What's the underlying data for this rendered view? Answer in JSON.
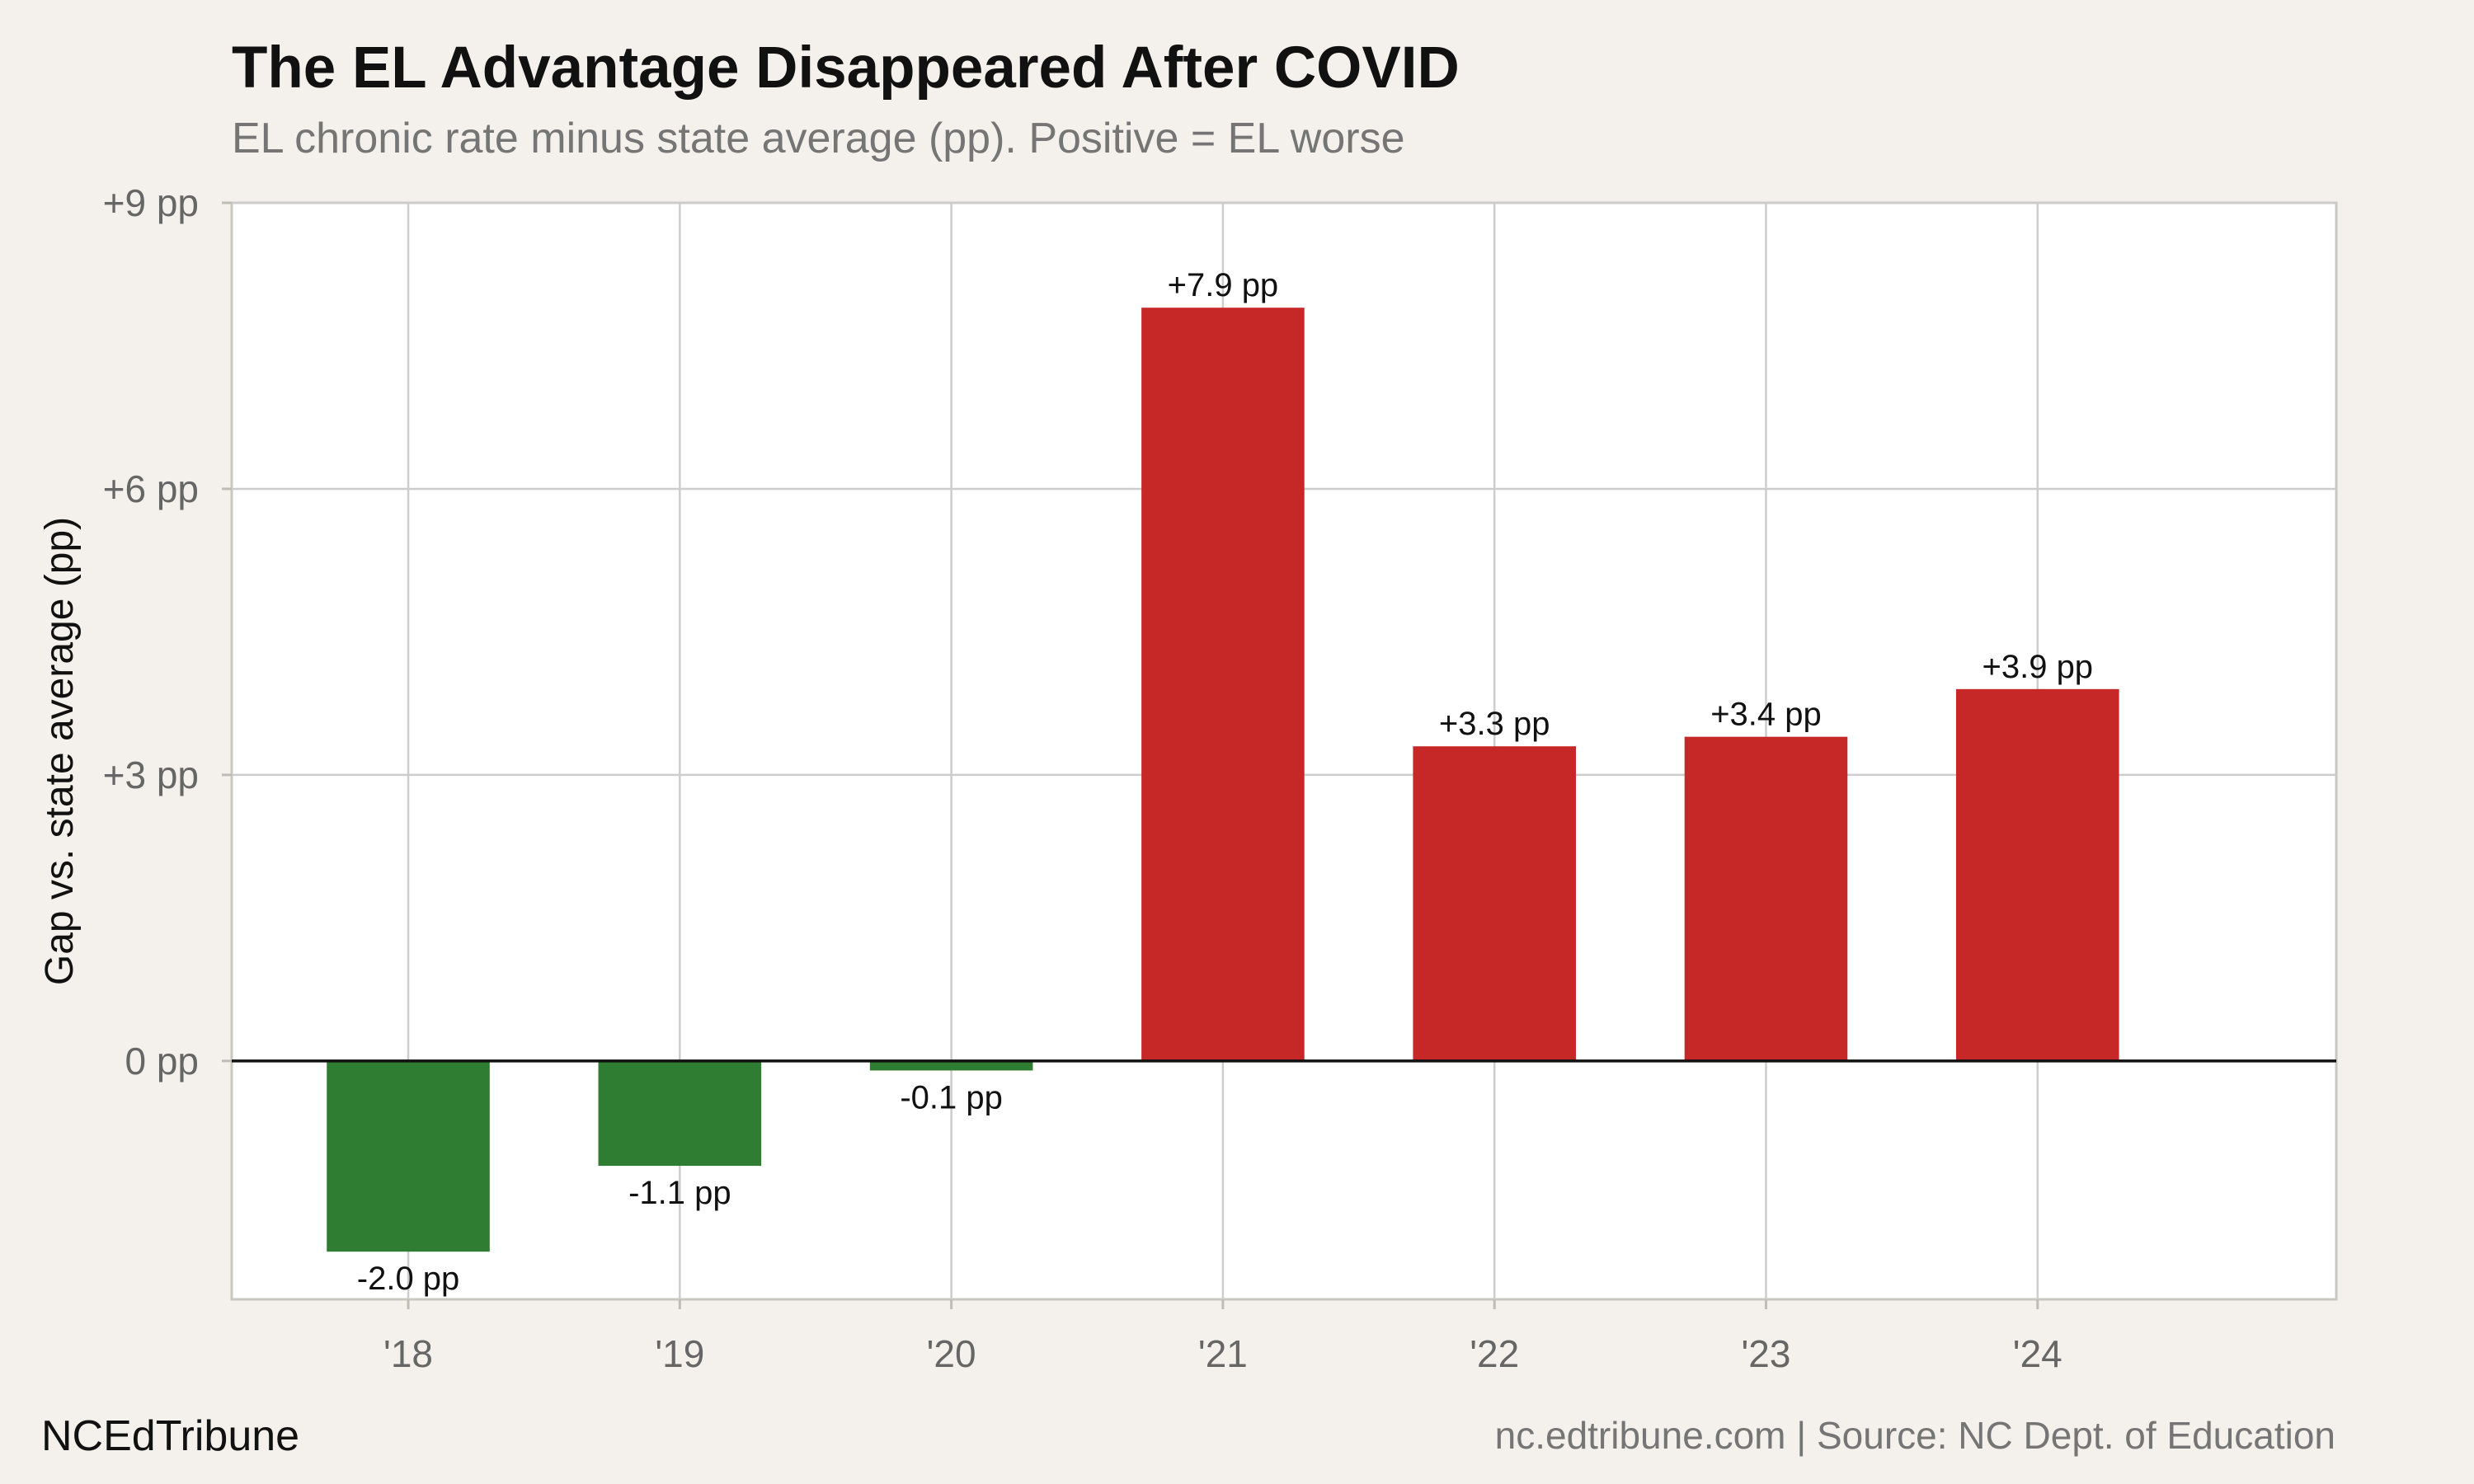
{
  "header": {
    "title": "The EL Advantage Disappeared After COVID",
    "subtitle": "EL chronic rate minus state average (pp). Positive = EL worse"
  },
  "footer": {
    "brand": "NCEdTribune",
    "source": "nc.edtribune.com | Source: NC Dept. of Education"
  },
  "colors": {
    "positive": "#c62828",
    "negative": "#2e7d32",
    "background": "#f4f1ec",
    "panel": "#ffffff",
    "grid": "#cccccc"
  },
  "chart_data": {
    "type": "bar",
    "title": "The EL Advantage Disappeared After COVID",
    "subtitle": "EL chronic rate minus state average (pp). Positive = EL worse",
    "xlabel": "",
    "ylabel": "Gap vs. state average (pp)",
    "categories": [
      "'18",
      "'19",
      "'20",
      "'21",
      "'22",
      "'23",
      "'24"
    ],
    "values": [
      -2.0,
      -1.1,
      -0.1,
      7.9,
      3.3,
      3.4,
      3.9
    ],
    "value_labels": [
      "-2.0 pp",
      "-1.1 pp",
      "-0.1 pp",
      "+7.9 pp",
      "+3.3 pp",
      "+3.4 pp",
      "+3.9 pp"
    ],
    "yticks": [
      0,
      3,
      6,
      9
    ],
    "ytick_labels": [
      "0 pp",
      "+3 pp",
      "+6 pp",
      "+9 pp"
    ],
    "ylim": [
      -2.5,
      9
    ],
    "xlim": [
      0.35,
      8.1
    ],
    "grid": true,
    "legend": "none"
  }
}
